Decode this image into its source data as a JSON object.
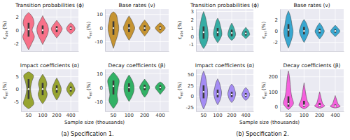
{
  "chart_data": [
    {
      "type": "violin",
      "title": "Transition probabilities (ϕ)",
      "ylabel": {
        "symbol": "ε",
        "subscript": "abs",
        "unit": "(%)"
      },
      "categories": [
        "50",
        "100",
        "200",
        "400"
      ],
      "ylim": [
        -3.2,
        3.2
      ],
      "yticks": [
        -2,
        0,
        2
      ],
      "color": "#f77189",
      "grid": true,
      "tick_labels": "y",
      "violins": [
        {
          "y": [
            -3,
            -2,
            -1,
            0,
            1,
            2,
            2.7
          ],
          "density": [
            0,
            0.5,
            0.9,
            0.55,
            0.85,
            0.6,
            0
          ],
          "q1": -1,
          "median": 0.1,
          "q3": 1.1
        },
        {
          "y": [
            -2.2,
            -1.5,
            -0.8,
            0,
            0.8,
            1.5,
            2.2
          ],
          "density": [
            0,
            0.35,
            0.7,
            0.9,
            0.75,
            0.35,
            0
          ],
          "q1": -0.6,
          "median": 0,
          "q3": 0.7
        },
        {
          "y": [
            -1.2,
            -0.8,
            -0.3,
            0.2,
            0.7,
            1.1,
            1.5
          ],
          "density": [
            0,
            0.3,
            0.65,
            0.85,
            0.6,
            0.3,
            0
          ],
          "q1": -0.3,
          "median": 0.2,
          "q3": 0.6
        },
        {
          "y": [
            -0.6,
            -0.3,
            0,
            0.3,
            0.6,
            0.9,
            1.1
          ],
          "density": [
            0,
            0.35,
            0.6,
            0.65,
            0.5,
            0.25,
            0
          ],
          "q1": 0,
          "median": 0.3,
          "q3": 0.55
        }
      ]
    },
    {
      "type": "violin",
      "title": "Base rates (ν)",
      "ylabel": {
        "symbol": "ε",
        "subscript": "rel",
        "unit": "(%)"
      },
      "categories": [
        "50",
        "100",
        "200",
        "400"
      ],
      "ylim": [
        -17,
        14
      ],
      "yticks": [
        -10,
        0,
        10
      ],
      "color": "#c69432",
      "grid": true,
      "tick_labels": "y",
      "violins": [
        {
          "y": [
            -15,
            -10,
            -5,
            0,
            5,
            10,
            12
          ],
          "density": [
            0,
            0.3,
            0.6,
            0.75,
            0.6,
            0.4,
            0
          ],
          "q1": -5,
          "median": 0,
          "q3": 5
        },
        {
          "y": [
            -9,
            -6,
            -3,
            0,
            3,
            6,
            9
          ],
          "density": [
            0,
            0.35,
            0.6,
            0.8,
            0.6,
            0.35,
            0
          ],
          "q1": -3,
          "median": 0,
          "q3": 3
        },
        {
          "y": [
            -6,
            -4,
            -2,
            0,
            2,
            4,
            6
          ],
          "density": [
            0,
            0.3,
            0.55,
            0.75,
            0.55,
            0.3,
            0
          ],
          "q1": -2,
          "median": 0,
          "q3": 2
        },
        {
          "y": [
            -4,
            -2.7,
            -1.3,
            0,
            1.3,
            2.7,
            4
          ],
          "density": [
            0,
            0.3,
            0.55,
            0.7,
            0.55,
            0.3,
            0
          ],
          "q1": -1.3,
          "median": 0,
          "q3": 1.3
        }
      ]
    },
    {
      "type": "violin",
      "title": "Impact coefficients (α)",
      "ylabel": {
        "symbol": "ε",
        "subscript": "rel",
        "unit": "(%)"
      },
      "categories": [
        "50",
        "100",
        "200",
        "400"
      ],
      "ylim": [
        -9,
        8
      ],
      "yticks": [
        -5,
        0,
        5
      ],
      "color": "#97a431",
      "grid": true,
      "violins": [
        {
          "y": [
            -8,
            -6,
            -3,
            0,
            3,
            5.5,
            7
          ],
          "density": [
            0,
            0.8,
            0.5,
            0.3,
            0.5,
            0.75,
            0
          ],
          "q1": -4,
          "median": 0,
          "q3": 4
        },
        {
          "y": [
            -6,
            -4,
            -2,
            0,
            2,
            4,
            6
          ],
          "density": [
            0,
            0.5,
            0.7,
            0.5,
            0.65,
            0.45,
            0
          ],
          "q1": -2.5,
          "median": 0,
          "q3": 2.5
        },
        {
          "y": [
            -4.5,
            -3,
            -1.5,
            0,
            1.5,
            3,
            4.5
          ],
          "density": [
            0,
            0.35,
            0.6,
            0.7,
            0.55,
            0.3,
            0
          ],
          "q1": -1.5,
          "median": 0,
          "q3": 1.5
        },
        {
          "y": [
            -3,
            -2,
            -1,
            0,
            1,
            2,
            3
          ],
          "density": [
            0,
            0.3,
            0.55,
            0.65,
            0.5,
            0.3,
            0
          ],
          "q1": -1,
          "median": 0,
          "q3": 1
        }
      ]
    },
    {
      "type": "violin",
      "title": "Decay coefficients (β)",
      "ylabel": {
        "symbol": "ε",
        "subscript": "rel",
        "unit": "(%)"
      },
      "categories": [
        "50",
        "100",
        "200",
        "400"
      ],
      "ylim": [
        -17,
        13
      ],
      "yticks": [
        -10,
        0,
        10
      ],
      "color": "#32b166",
      "grid": true,
      "violins": [
        {
          "y": [
            -15,
            -10,
            -5,
            0,
            5,
            8,
            11
          ],
          "density": [
            0,
            0.6,
            0.5,
            0.65,
            0.8,
            0.5,
            0
          ],
          "q1": -5,
          "median": 1,
          "q3": 5
        },
        {
          "y": [
            -10,
            -7,
            -3,
            0,
            3,
            6,
            9
          ],
          "density": [
            0,
            0.35,
            0.65,
            0.7,
            0.6,
            0.35,
            0
          ],
          "q1": -3,
          "median": 0,
          "q3": 3
        },
        {
          "y": [
            -7,
            -5,
            -2,
            0,
            2,
            4,
            6
          ],
          "density": [
            0,
            0.3,
            0.55,
            0.7,
            0.55,
            0.3,
            0
          ],
          "q1": -2,
          "median": 0,
          "q3": 2
        },
        {
          "y": [
            -5,
            -3,
            -1.5,
            0,
            1.5,
            3,
            4
          ],
          "density": [
            0,
            0.3,
            0.55,
            0.7,
            0.55,
            0.3,
            0
          ],
          "q1": -1.5,
          "median": 0,
          "q3": 1.5
        }
      ]
    },
    {
      "type": "violin",
      "title": "Transition probabilities (ϕ)",
      "ylabel": {
        "symbol": "ε",
        "subscript": "abs",
        "unit": "(%)"
      },
      "categories": [
        "50",
        "100",
        "200",
        "400"
      ],
      "ylim": [
        -1.8,
        3.3
      ],
      "yticks": [
        -1,
        0,
        1,
        2,
        3
      ],
      "color": "#36ada4",
      "grid": true,
      "tick_labels": "y",
      "violins": [
        {
          "y": [
            -1.5,
            -0.8,
            0,
            0.8,
            1.5,
            2.3,
            3
          ],
          "density": [
            0,
            0.5,
            0.7,
            0.65,
            0.5,
            0.3,
            0
          ],
          "q1": -0.3,
          "median": 0.5,
          "q3": 1.2
        },
        {
          "y": [
            -0.8,
            -0.3,
            0.2,
            0.7,
            1.2,
            1.8,
            2.2
          ],
          "density": [
            0,
            0.4,
            0.65,
            0.6,
            0.45,
            0.25,
            0
          ],
          "q1": 0,
          "median": 0.5,
          "q3": 1
        },
        {
          "y": [
            -0.5,
            -0.2,
            0.2,
            0.5,
            0.9,
            1.3,
            1.6
          ],
          "density": [
            0,
            0.4,
            0.6,
            0.55,
            0.4,
            0.2,
            0
          ],
          "q1": 0,
          "median": 0.4,
          "q3": 0.8
        },
        {
          "y": [
            -0.3,
            0,
            0.2,
            0.4,
            0.7,
            0.9,
            1.1
          ],
          "density": [
            0,
            0.4,
            0.6,
            0.55,
            0.4,
            0.2,
            0
          ],
          "q1": 0.1,
          "median": 0.35,
          "q3": 0.6
        }
      ]
    },
    {
      "type": "violin",
      "title": "Base rates (ν)",
      "ylabel": {
        "symbol": "ε",
        "subscript": "rel",
        "unit": "(%)"
      },
      "categories": [
        "50",
        "100",
        "200",
        "400"
      ],
      "ylim": [
        -3.5,
        3.8
      ],
      "yticks": [
        -2,
        0,
        2
      ],
      "color": "#39a7d0",
      "grid": true,
      "tick_labels": "y",
      "violins": [
        {
          "y": [
            -3,
            -2,
            -1,
            0,
            1,
            2.5,
            3.5
          ],
          "density": [
            0,
            0.3,
            0.55,
            0.65,
            0.5,
            0.3,
            0
          ],
          "q1": -1,
          "median": 0.2,
          "q3": 1.2
        },
        {
          "y": [
            -2,
            -1.3,
            -0.6,
            0,
            0.7,
            1.4,
            2
          ],
          "density": [
            0,
            0.3,
            0.55,
            0.65,
            0.5,
            0.3,
            0
          ],
          "q1": -0.6,
          "median": 0,
          "q3": 0.7
        },
        {
          "y": [
            -1.4,
            -0.9,
            -0.4,
            0,
            0.4,
            0.9,
            1.4
          ],
          "density": [
            0,
            0.3,
            0.55,
            0.65,
            0.5,
            0.3,
            0
          ],
          "q1": -0.4,
          "median": 0,
          "q3": 0.4
        },
        {
          "y": [
            -1,
            -0.6,
            -0.3,
            0,
            0.3,
            0.6,
            1
          ],
          "density": [
            0,
            0.3,
            0.55,
            0.65,
            0.5,
            0.3,
            0
          ],
          "q1": -0.3,
          "median": 0,
          "q3": 0.3
        }
      ]
    },
    {
      "type": "violin",
      "title": "Impact coefficients (α)",
      "ylabel": {
        "symbol": "ε",
        "subscript": "rel",
        "unit": "(%)"
      },
      "categories": [
        "50",
        "100",
        "200",
        "400"
      ],
      "ylim": [
        -35,
        62
      ],
      "yticks": [
        -25,
        0,
        25,
        50
      ],
      "color": "#a48cf4",
      "grid": true,
      "violins": [
        {
          "y": [
            -30,
            -15,
            0,
            15,
            30,
            45,
            58
          ],
          "density": [
            0,
            0.4,
            0.6,
            0.6,
            0.45,
            0.3,
            0
          ],
          "q1": -5,
          "median": 10,
          "q3": 25
        },
        {
          "y": [
            -20,
            -10,
            0,
            10,
            20,
            30,
            40
          ],
          "density": [
            0,
            0.35,
            0.55,
            0.6,
            0.45,
            0.3,
            0
          ],
          "q1": -3,
          "median": 5,
          "q3": 15
        },
        {
          "y": [
            -15,
            -8,
            0,
            7,
            15,
            22,
            28
          ],
          "density": [
            0,
            0.35,
            0.55,
            0.6,
            0.45,
            0.3,
            0
          ],
          "q1": -2,
          "median": 4,
          "q3": 10
        },
        {
          "y": [
            -10,
            -5,
            0,
            5,
            10,
            15,
            20
          ],
          "density": [
            0,
            0.35,
            0.55,
            0.6,
            0.45,
            0.3,
            0
          ],
          "q1": -2,
          "median": 2,
          "q3": 7
        }
      ]
    },
    {
      "type": "violin",
      "title": "Decay coefficients (β)",
      "ylabel": {
        "symbol": "ε",
        "subscript": "rel",
        "unit": "(%)"
      },
      "categories": [
        "50",
        "100",
        "200",
        "400"
      ],
      "ylim": [
        -30,
        250
      ],
      "yticks": [
        0,
        100,
        200
      ],
      "color": "#f561dd",
      "grid": true,
      "violins": [
        {
          "y": [
            -20,
            20,
            60,
            100,
            150,
            200,
            240
          ],
          "density": [
            0,
            0.7,
            0.5,
            0.35,
            0.25,
            0.15,
            0
          ],
          "q1": 0,
          "median": 20,
          "q3": 70
        },
        {
          "y": [
            -15,
            10,
            40,
            70,
            100,
            130,
            160
          ],
          "density": [
            0,
            0.7,
            0.45,
            0.3,
            0.2,
            0.1,
            0
          ],
          "q1": 0,
          "median": 10,
          "q3": 40
        },
        {
          "y": [
            -10,
            5,
            20,
            40,
            60,
            80,
            100
          ],
          "density": [
            0,
            0.7,
            0.45,
            0.3,
            0.2,
            0.1,
            0
          ],
          "q1": 0,
          "median": 8,
          "q3": 25
        },
        {
          "y": [
            -8,
            3,
            15,
            30,
            45,
            60,
            75
          ],
          "density": [
            0,
            0.7,
            0.45,
            0.3,
            0.2,
            0.1,
            0
          ],
          "q1": 0,
          "median": 5,
          "q3": 15
        }
      ]
    }
  ],
  "panels": [
    {
      "caption": "(a) Specification 1.",
      "xlabel": "Sample size (thousands)"
    },
    {
      "caption": "(b) Specification 2.",
      "xlabel": "Sample size (thousands)"
    }
  ]
}
